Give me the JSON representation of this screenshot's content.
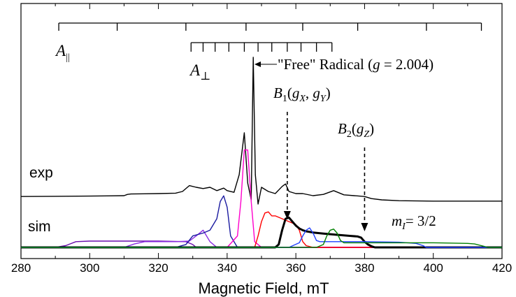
{
  "chart_data": {
    "type": "line",
    "xlabel": "Magnetic Field, mT",
    "xlim": [
      280,
      420
    ],
    "xticks": [
      280,
      300,
      320,
      340,
      360,
      380,
      400,
      420
    ],
    "curve_labels": {
      "exp": "exp",
      "sim": "sim"
    },
    "annotations": {
      "a_parallel": {
        "main": "A",
        "sub": "||"
      },
      "a_perp": {
        "main": "A",
        "sub": "⊥"
      },
      "free_radical": {
        "text": "\"Free\" Radical (",
        "g": "g",
        "eq": " = 2.004)"
      },
      "b1": {
        "b": "B",
        "idx": "1",
        "open": "(",
        "g1": "g",
        "s1": "X",
        "comma": ", ",
        "g2": "g",
        "s2": "Y",
        "close": ")"
      },
      "b2": {
        "b": "B",
        "idx": "2",
        "open": "(",
        "g": "g",
        "s": "Z",
        "close": ")"
      },
      "mi": {
        "m": "m",
        "sub": "I",
        "eq": "= 3/2"
      }
    },
    "a_parallel_lines_mT": [
      291,
      308,
      328,
      345.5,
      362,
      378,
      398,
      414
    ],
    "a_perp_lines_mT": [
      329.5,
      333,
      336.5,
      340.5,
      345,
      349,
      353,
      357.5,
      361.5,
      366,
      370.5
    ],
    "b1_field_mT": 357.5,
    "b2_field_mT": 380,
    "series": [
      {
        "name": "exp",
        "color": "#000000",
        "x": [
          280,
          290,
          300,
          305,
          310,
          311,
          312,
          316,
          320,
          325,
          327,
          329,
          331,
          333,
          335,
          337,
          339,
          340,
          342,
          343.5,
          345,
          346,
          347,
          347.6,
          348.2,
          349,
          350,
          351,
          352,
          354,
          356,
          357,
          358,
          360,
          362,
          365,
          368,
          371,
          374,
          377,
          380,
          382,
          385,
          390,
          400,
          410,
          420
        ],
        "y": [
          -0.02,
          -0.015,
          -0.01,
          -0.005,
          0.0,
          0.03,
          0.04,
          0.045,
          0.05,
          0.06,
          0.1,
          0.24,
          0.2,
          0.17,
          0.2,
          0.12,
          0.18,
          0.12,
          0.08,
          0.5,
          1.5,
          0.3,
          -0.1,
          3.3,
          0.5,
          -0.2,
          0.2,
          0.15,
          0.1,
          0.05,
          0.22,
          0.28,
          0.1,
          0.05,
          0.05,
          0.0,
          0.03,
          0.12,
          0.02,
          0.0,
          -0.02,
          -0.07,
          -0.1,
          -0.12,
          -0.13,
          -0.13,
          -0.13
        ]
      },
      {
        "name": "violet",
        "color": "#6a0dad",
        "x": [
          280,
          290,
          293,
          296,
          300,
          310,
          320,
          328,
          330,
          331,
          340,
          360,
          400,
          420
        ],
        "y": [
          0.0,
          0.0,
          0.03,
          0.1,
          0.11,
          0.11,
          0.11,
          0.1,
          0.05,
          0.0,
          0.0,
          0.0,
          0.0,
          0.0
        ]
      },
      {
        "name": "purple",
        "color": "#8a2be2",
        "x": [
          280,
          310,
          313,
          316,
          320,
          325,
          329,
          331,
          333,
          335,
          337,
          340,
          360,
          420
        ],
        "y": [
          0.0,
          0.0,
          0.06,
          0.1,
          0.1,
          0.1,
          0.11,
          0.2,
          0.3,
          0.1,
          0.0,
          0.0,
          0.0,
          0.0
        ]
      },
      {
        "name": "navy",
        "color": "#1a1aa0",
        "x": [
          280,
          325,
          328,
          330,
          333,
          335,
          337,
          338,
          339,
          340,
          341,
          343,
          360,
          420
        ],
        "y": [
          0.0,
          0.0,
          0.05,
          0.2,
          0.25,
          0.3,
          0.5,
          0.8,
          0.9,
          0.7,
          0.2,
          0.0,
          0.0,
          0.0
        ]
      },
      {
        "name": "magenta",
        "color": "#ff00cc",
        "x": [
          280,
          340,
          343,
          344,
          345,
          346,
          347,
          348,
          350,
          360,
          420
        ],
        "y": [
          0.0,
          0.0,
          0.2,
          0.8,
          1.7,
          1.7,
          0.8,
          0.1,
          0.0,
          0.0,
          0.0
        ]
      },
      {
        "name": "red",
        "color": "#ff0000",
        "x": [
          280,
          348,
          349,
          350,
          351,
          352,
          353,
          354,
          356,
          358,
          360,
          361,
          362,
          363,
          365,
          420
        ],
        "y": [
          0.0,
          0.0,
          0.2,
          0.45,
          0.6,
          0.62,
          0.55,
          0.55,
          0.5,
          0.45,
          0.4,
          0.3,
          0.1,
          0.03,
          0.0,
          0.0
        ]
      },
      {
        "name": "black-sim",
        "color": "#000000",
        "x": [
          280,
          354,
          355,
          356,
          357,
          358,
          359,
          360,
          361,
          362,
          363,
          365,
          368,
          372,
          376,
          378,
          379,
          380,
          381,
          382,
          383,
          420
        ],
        "y": [
          0.0,
          0.0,
          0.05,
          0.3,
          0.5,
          0.52,
          0.45,
          0.38,
          0.33,
          0.3,
          0.28,
          0.26,
          0.24,
          0.22,
          0.2,
          0.19,
          0.17,
          0.1,
          0.05,
          0.02,
          0.0,
          0.0
        ]
      },
      {
        "name": "blue",
        "color": "#1f3fff",
        "x": [
          280,
          358,
          361,
          362,
          363,
          364,
          365,
          366,
          367,
          370,
          380,
          390,
          395,
          397,
          398,
          400,
          420
        ],
        "y": [
          0.0,
          0.0,
          0.08,
          0.2,
          0.3,
          0.34,
          0.25,
          0.12,
          0.1,
          0.1,
          0.1,
          0.09,
          0.07,
          0.03,
          0.0,
          0.0,
          0.0
        ]
      },
      {
        "name": "green",
        "color": "#008000",
        "x": [
          280,
          366,
          368,
          369,
          370,
          371,
          372,
          373,
          374,
          380,
          390,
          400,
          410,
          412,
          414,
          416,
          420
        ],
        "y": [
          0.0,
          0.0,
          0.05,
          0.2,
          0.3,
          0.32,
          0.25,
          0.12,
          0.08,
          0.08,
          0.08,
          0.08,
          0.07,
          0.06,
          0.03,
          0.0,
          0.0
        ]
      }
    ]
  }
}
